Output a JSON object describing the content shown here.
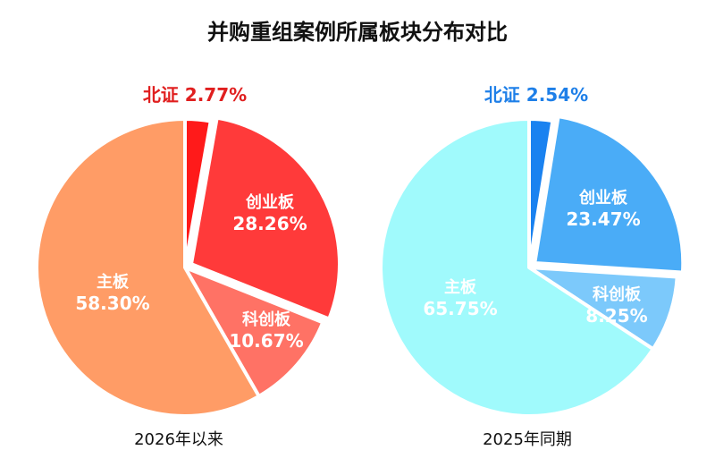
{
  "chart_data": {
    "type": "pie",
    "title": "并购重组案例所属板块分布对比",
    "charts": [
      {
        "caption": "2026年以来",
        "slices": [
          {
            "label": "北证",
            "value": 2.77,
            "value_text": "2.77%",
            "color": "#ff1a1a",
            "label_color": "#e01f1f"
          },
          {
            "label": "创业板",
            "value": 28.26,
            "value_text": "28.26%",
            "color": "#ff3a3a"
          },
          {
            "label": "科创板",
            "value": 10.67,
            "value_text": "10.67%",
            "color": "#ff7265"
          },
          {
            "label": "主板",
            "value": 58.3,
            "value_text": "58.30%",
            "color": "#ff9c66"
          }
        ]
      },
      {
        "caption": "2025年同期",
        "slices": [
          {
            "label": "北证",
            "value": 2.54,
            "value_text": "2.54%",
            "color": "#1a82f0",
            "label_color": "#1e7fe8"
          },
          {
            "label": "创业板",
            "value": 23.47,
            "value_text": "23.47%",
            "color": "#4aacf7"
          },
          {
            "label": "科创板",
            "value": 8.25,
            "value_text": "8.25%",
            "color": "#7cc9fb"
          },
          {
            "label": "主板",
            "value": 65.75,
            "value_text": "65.75%",
            "color": "#a0fafc"
          }
        ]
      }
    ]
  }
}
